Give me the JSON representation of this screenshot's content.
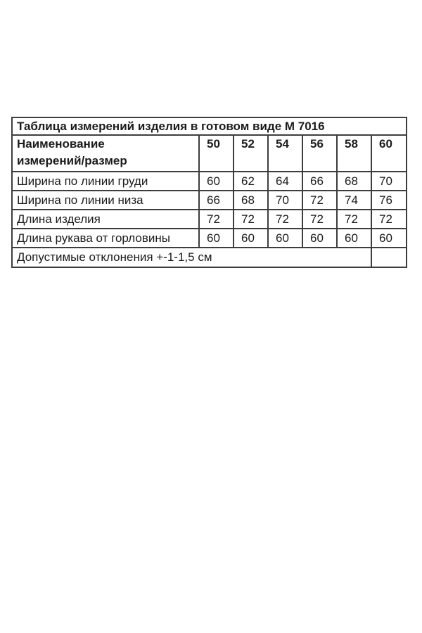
{
  "page": {
    "background_color": "#ffffff",
    "border_color": "#3d3d3d",
    "text_color": "#1b1b1b"
  },
  "table": {
    "title": "Таблица измерений изделия в готовом виде М 7016",
    "header": {
      "name_line1": "Наименование",
      "name_line2": "измерений/размер",
      "sizes": [
        "50",
        "52",
        "54",
        "56",
        "58",
        "60"
      ]
    },
    "rows": [
      {
        "name": "Ширина по линии груди",
        "values": [
          "60",
          "62",
          "64",
          "66",
          "68",
          "70"
        ]
      },
      {
        "name": "Ширина по линии низа",
        "values": [
          "66",
          "68",
          "70",
          "72",
          "74",
          "76"
        ]
      },
      {
        "name": "Длина изделия",
        "values": [
          "72",
          "72",
          "72",
          "72",
          "72",
          "72"
        ]
      },
      {
        "name": "Длина рукава от горловины",
        "values": [
          "60",
          "60",
          "60",
          "60",
          "60",
          "60"
        ]
      }
    ],
    "footer": "Допустимые отклонения +-1-1,5 см"
  }
}
